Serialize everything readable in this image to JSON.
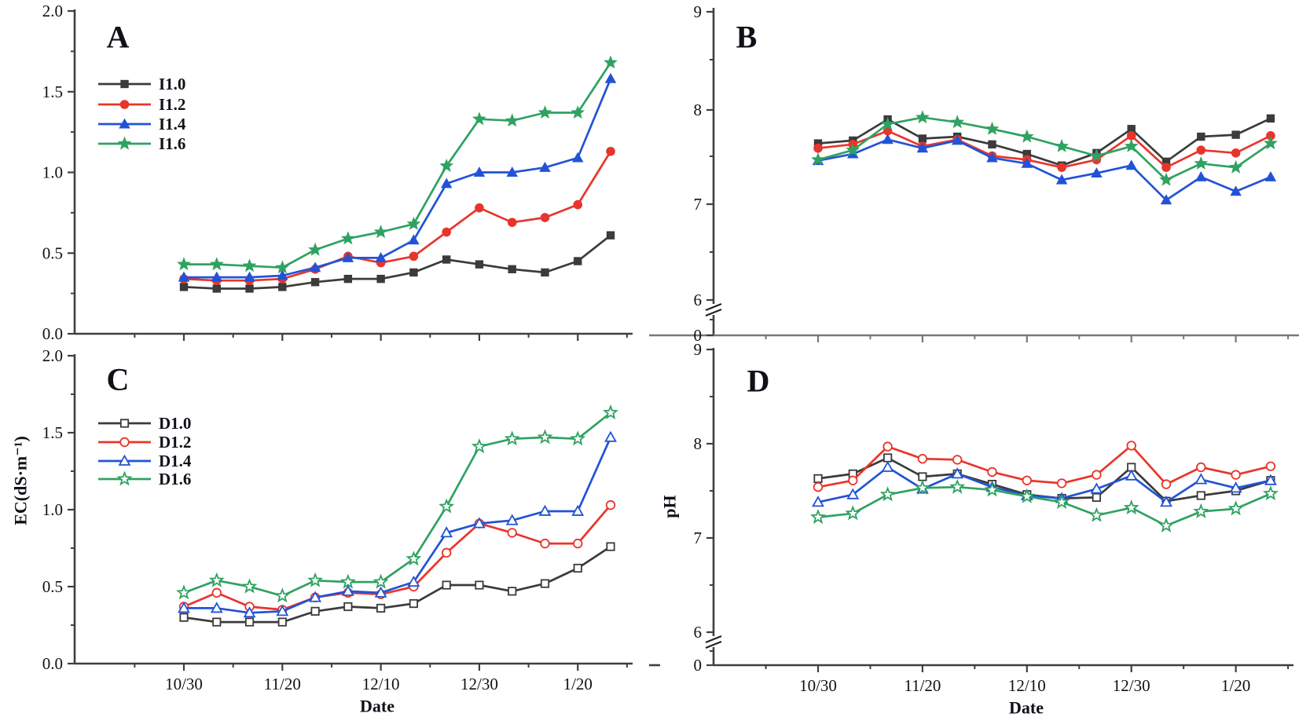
{
  "figure_title": "",
  "x_axis": {
    "title": "Date",
    "tick_labels": [
      "10/30",
      "11/20",
      "12/10",
      "12/30",
      "1/20"
    ],
    "points_per_series": 14,
    "major_tick_point_indices": [
      0,
      3,
      6,
      9,
      12
    ]
  },
  "y_axis": {
    "ec_label": "EC(dS·m⁻¹)",
    "ph_label": "pH",
    "ec_tick_labels": [
      "0.0",
      "0.5",
      "1.0",
      "1.5",
      "2.0"
    ],
    "ph_tick_labels": [
      "9",
      "8",
      "7",
      "6",
      "0"
    ],
    "ph_axis_break": {
      "between_low": 0,
      "between_high": 6
    }
  },
  "colors": {
    "black": "#3b3b3b",
    "red": "#e8352b",
    "blue": "#2253d6",
    "green": "#2fa261"
  },
  "chart_data": [
    {
      "type": "line",
      "panel": "A",
      "ylabel": "EC(dS·m-1)",
      "ylim": [
        0.0,
        2.0
      ],
      "yticks": [
        0.0,
        0.5,
        1.0,
        1.5,
        2.0
      ],
      "x_tick_labels": [
        "10/30",
        "11/20",
        "12/10",
        "12/30",
        "1/20"
      ],
      "legend_position": "upper-left",
      "series": [
        {
          "name": "I1.0",
          "color": "#3b3b3b",
          "marker": "square",
          "marker_fill": "filled",
          "values": [
            0.29,
            0.28,
            0.28,
            0.29,
            0.32,
            0.34,
            0.34,
            0.38,
            0.46,
            0.43,
            0.4,
            0.38,
            0.45,
            0.61
          ]
        },
        {
          "name": "I1.2",
          "color": "#e8352b",
          "marker": "circle",
          "marker_fill": "filled",
          "values": [
            0.34,
            0.33,
            0.33,
            0.34,
            0.4,
            0.48,
            0.44,
            0.48,
            0.63,
            0.78,
            0.69,
            0.72,
            0.8,
            1.13
          ]
        },
        {
          "name": "I1.4",
          "color": "#2253d6",
          "marker": "triangle",
          "marker_fill": "filled",
          "values": [
            0.35,
            0.35,
            0.35,
            0.36,
            0.41,
            0.47,
            0.47,
            0.58,
            0.93,
            1.0,
            1.0,
            1.03,
            1.09,
            1.58
          ]
        },
        {
          "name": "I1.6",
          "color": "#2fa261",
          "marker": "star",
          "marker_fill": "filled",
          "values": [
            0.43,
            0.43,
            0.42,
            0.41,
            0.52,
            0.59,
            0.63,
            0.68,
            1.04,
            1.33,
            1.32,
            1.37,
            1.37,
            1.68
          ]
        }
      ]
    },
    {
      "type": "line",
      "panel": "B",
      "ylabel": "pH",
      "ylim_shown": [
        6.0,
        9.0
      ],
      "yticks": [
        9,
        8,
        7,
        6,
        0
      ],
      "axis_break": true,
      "x_tick_labels": [
        "10/30",
        "11/20",
        "12/10",
        "12/30",
        "1/20"
      ],
      "series": [
        {
          "name": "I1.0",
          "color": "#3b3b3b",
          "marker": "square",
          "marker_fill": "filled",
          "values": [
            7.63,
            7.66,
            7.88,
            7.68,
            7.7,
            7.62,
            7.52,
            7.4,
            7.53,
            7.78,
            7.44,
            7.7,
            7.72,
            7.89
          ]
        },
        {
          "name": "I1.2",
          "color": "#e8352b",
          "marker": "circle",
          "marker_fill": "filled",
          "values": [
            7.58,
            7.62,
            7.76,
            7.6,
            7.67,
            7.5,
            7.46,
            7.38,
            7.46,
            7.71,
            7.38,
            7.56,
            7.53,
            7.71
          ]
        },
        {
          "name": "I1.4",
          "color": "#2253d6",
          "marker": "triangle",
          "marker_fill": "filled",
          "values": [
            7.45,
            7.52,
            7.67,
            7.58,
            7.66,
            7.48,
            7.42,
            7.25,
            7.32,
            7.4,
            7.04,
            7.28,
            7.13,
            7.28
          ]
        },
        {
          "name": "I1.6",
          "color": "#2fa261",
          "marker": "star",
          "marker_fill": "filled",
          "values": [
            7.46,
            7.56,
            7.83,
            7.9,
            7.85,
            7.78,
            7.7,
            7.6,
            7.5,
            7.6,
            7.25,
            7.42,
            7.38,
            7.63
          ]
        }
      ]
    },
    {
      "type": "line",
      "panel": "C",
      "ylabel": "EC(dS·m-1)",
      "ylim": [
        0.0,
        2.0
      ],
      "yticks": [
        0.0,
        0.5,
        1.0,
        1.5,
        2.0
      ],
      "x_tick_labels": [
        "10/30",
        "11/20",
        "12/10",
        "12/30",
        "1/20"
      ],
      "xlabel": "Date",
      "legend_position": "upper-left",
      "series": [
        {
          "name": "D1.0",
          "color": "#3b3b3b",
          "marker": "square",
          "marker_fill": "open",
          "values": [
            0.3,
            0.27,
            0.27,
            0.27,
            0.34,
            0.37,
            0.36,
            0.39,
            0.51,
            0.51,
            0.47,
            0.52,
            0.62,
            0.76
          ]
        },
        {
          "name": "D1.2",
          "color": "#e8352b",
          "marker": "circle",
          "marker_fill": "open",
          "values": [
            0.37,
            0.46,
            0.37,
            0.35,
            0.43,
            0.46,
            0.45,
            0.5,
            0.72,
            0.91,
            0.85,
            0.78,
            0.78,
            1.03
          ]
        },
        {
          "name": "D1.4",
          "color": "#2253d6",
          "marker": "triangle",
          "marker_fill": "open",
          "values": [
            0.36,
            0.36,
            0.33,
            0.34,
            0.43,
            0.47,
            0.46,
            0.53,
            0.85,
            0.91,
            0.93,
            0.99,
            0.99,
            1.47
          ]
        },
        {
          "name": "D1.6",
          "color": "#2fa261",
          "marker": "star",
          "marker_fill": "open",
          "values": [
            0.46,
            0.54,
            0.5,
            0.44,
            0.54,
            0.53,
            0.53,
            0.68,
            1.02,
            1.41,
            1.46,
            1.47,
            1.46,
            1.63
          ]
        }
      ]
    },
    {
      "type": "line",
      "panel": "D",
      "ylabel": "pH",
      "ylim_shown": [
        6.0,
        9.0
      ],
      "yticks": [
        9,
        8,
        7,
        6,
        0
      ],
      "axis_break": true,
      "x_tick_labels": [
        "10/30",
        "11/20",
        "12/10",
        "12/30",
        "1/20"
      ],
      "xlabel": "Date",
      "series": [
        {
          "name": "D1.0",
          "color": "#3b3b3b",
          "marker": "square",
          "marker_fill": "open",
          "values": [
            7.63,
            7.68,
            7.85,
            7.65,
            7.68,
            7.57,
            7.46,
            7.42,
            7.43,
            7.75,
            7.39,
            7.45,
            7.5,
            7.61
          ]
        },
        {
          "name": "D1.2",
          "color": "#e8352b",
          "marker": "circle",
          "marker_fill": "open",
          "values": [
            7.54,
            7.61,
            7.97,
            7.84,
            7.83,
            7.7,
            7.61,
            7.58,
            7.67,
            7.98,
            7.57,
            7.75,
            7.67,
            7.76
          ]
        },
        {
          "name": "D1.4",
          "color": "#2253d6",
          "marker": "triangle",
          "marker_fill": "open",
          "values": [
            7.38,
            7.46,
            7.75,
            7.52,
            7.68,
            7.54,
            7.45,
            7.42,
            7.52,
            7.66,
            7.38,
            7.62,
            7.53,
            7.61
          ]
        },
        {
          "name": "D1.6",
          "color": "#2fa261",
          "marker": "star",
          "marker_fill": "open",
          "values": [
            7.22,
            7.26,
            7.46,
            7.53,
            7.54,
            7.51,
            7.44,
            7.38,
            7.24,
            7.32,
            7.13,
            7.28,
            7.31,
            7.47
          ]
        }
      ]
    }
  ]
}
